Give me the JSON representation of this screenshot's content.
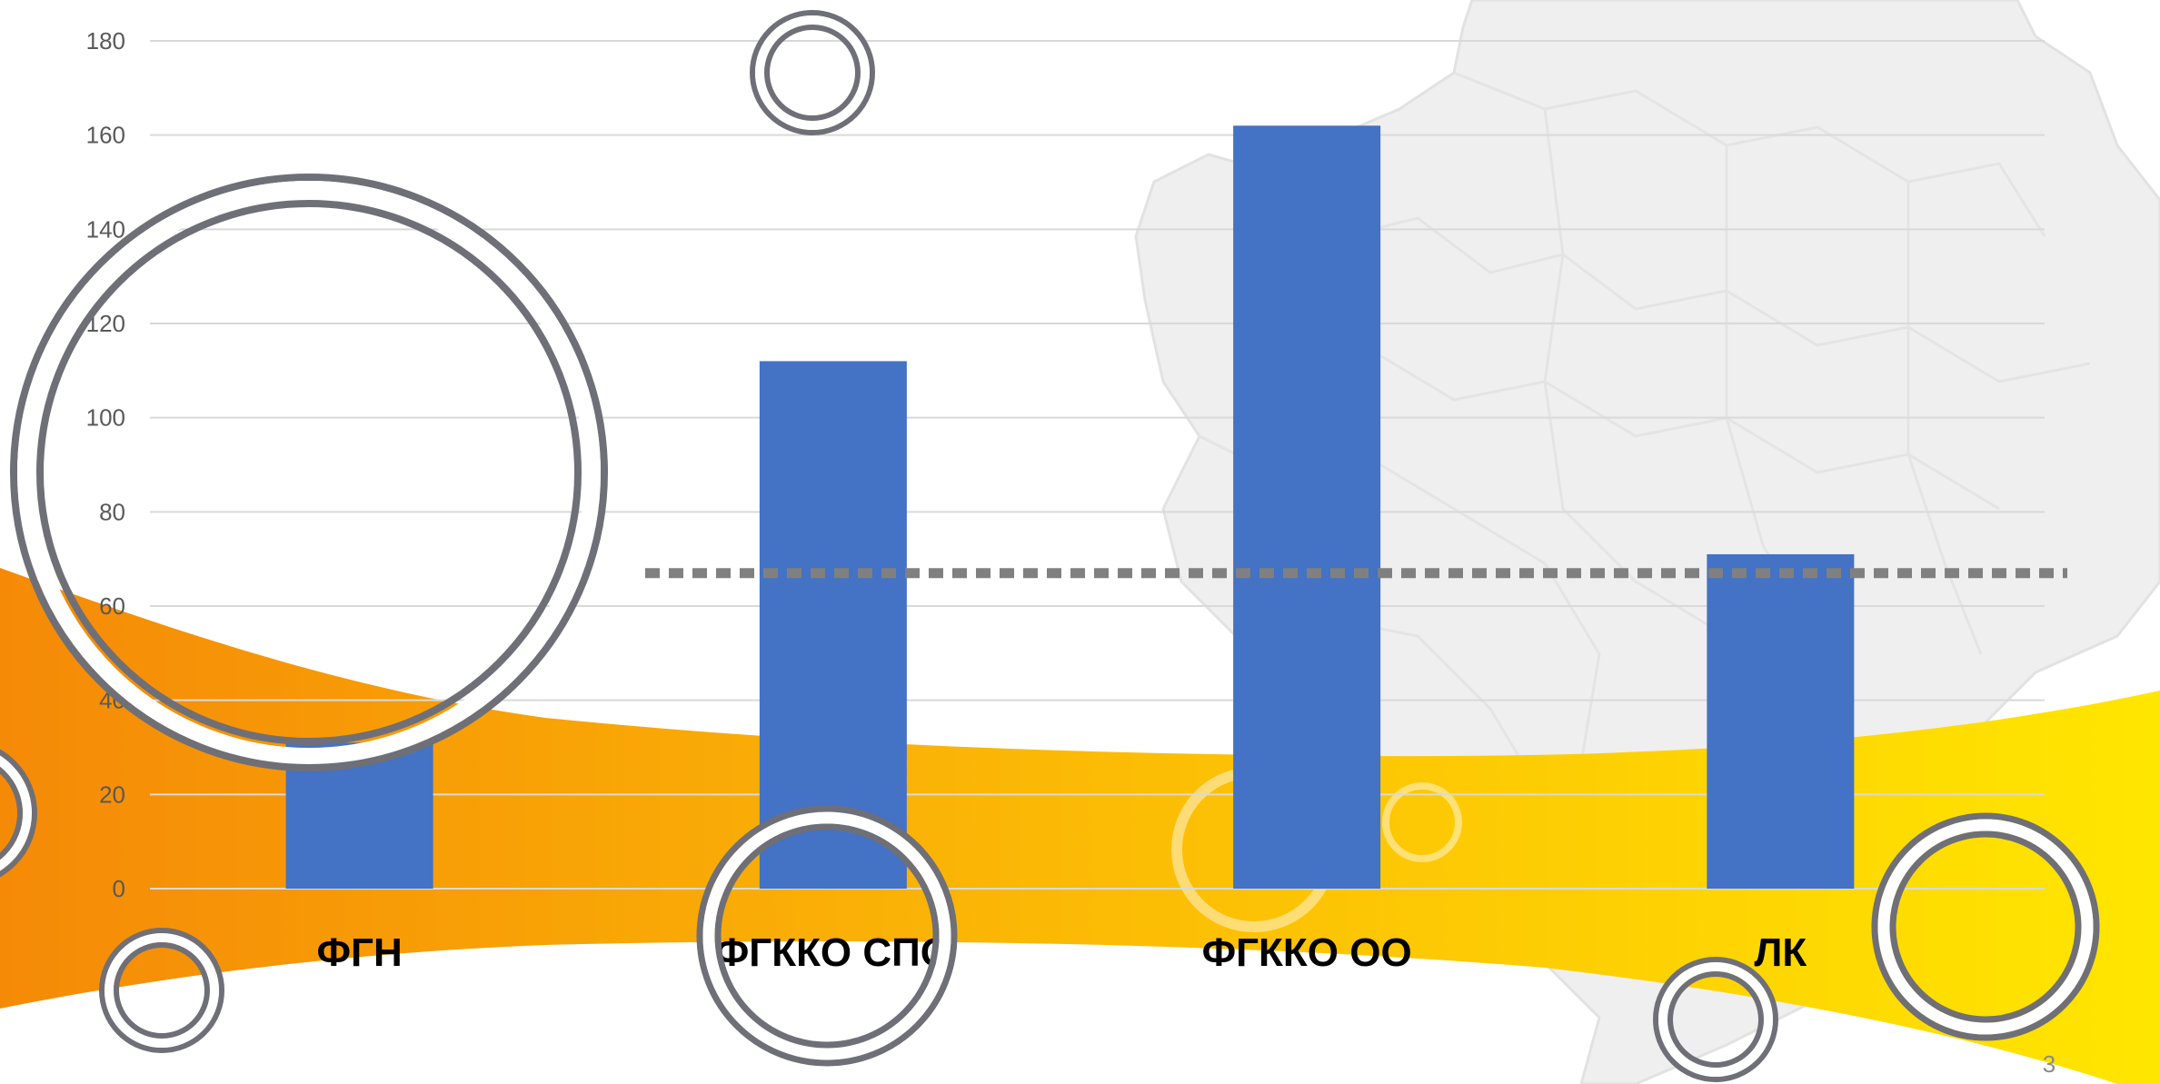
{
  "slide": {
    "page_number": "3"
  },
  "chart_data": {
    "type": "bar",
    "title": "",
    "xlabel": "",
    "ylabel": "",
    "categories": [
      "ФГН",
      "ФГККО СПО",
      "ФГККО ОО",
      "ЛК"
    ],
    "values": [
      31,
      112,
      162,
      71
    ],
    "ylim": [
      0,
      180
    ],
    "yticks": [
      "0",
      "20",
      "40",
      "60",
      "80",
      "100",
      "120",
      "140",
      "160",
      "180"
    ],
    "reference_line": {
      "value": 67,
      "style": "dotted"
    },
    "grid": true,
    "legend": "none",
    "colors": {
      "bar": "#4472C4",
      "grid": "#d9d9d9",
      "reference": "#808080",
      "wave_start": "#F58A07",
      "wave_end": "#FFE600"
    }
  }
}
